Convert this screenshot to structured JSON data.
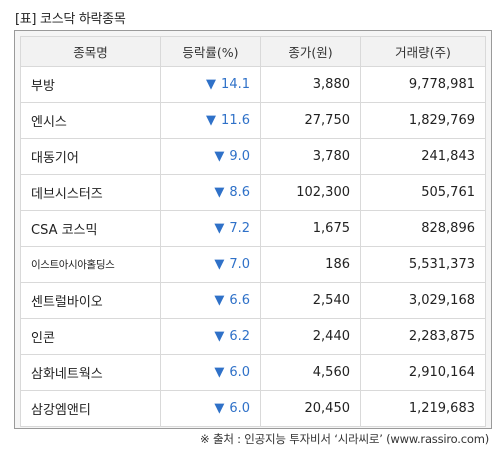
{
  "title": "[표] 코스닥 하락종목",
  "columns": [
    "종목명",
    "등락률(%)",
    "종가(원)",
    "거래량(주)"
  ],
  "rows": [
    {
      "name": "부방",
      "arrow": "▼",
      "rate": "14.1",
      "price": "3,880",
      "volume": "9,778,981"
    },
    {
      "name": "엔시스",
      "arrow": "▼",
      "rate": "11.6",
      "price": "27,750",
      "volume": "1,829,769"
    },
    {
      "name": "대동기어",
      "arrow": "▼",
      "rate": "9.0",
      "price": "3,780",
      "volume": "241,843"
    },
    {
      "name": "데브시스터즈",
      "arrow": "▼",
      "rate": "8.6",
      "price": "102,300",
      "volume": "505,761"
    },
    {
      "name": "CSA 코스믹",
      "arrow": "▼",
      "rate": "7.2",
      "price": "1,675",
      "volume": "828,896"
    },
    {
      "name": "이스트아시아홀딩스",
      "arrow": "▼",
      "rate": "7.0",
      "price": "186",
      "volume": "5,531,373"
    },
    {
      "name": "센트럴바이오",
      "arrow": "▼",
      "rate": "6.6",
      "price": "2,540",
      "volume": "3,029,168"
    },
    {
      "name": "인콘",
      "arrow": "▼",
      "rate": "6.2",
      "price": "2,440",
      "volume": "2,283,875"
    },
    {
      "name": "삼화네트웍스",
      "arrow": "▼",
      "rate": "6.0",
      "price": "4,560",
      "volume": "2,910,164"
    },
    {
      "name": "삼강엠앤티",
      "arrow": "▼",
      "rate": "6.0",
      "price": "20,450",
      "volume": "1,219,683"
    }
  ],
  "footnote": "※ 출처 : 인공지능 투자비서 ‘시라씨로’ (www.rassiro.com)",
  "colors": {
    "down": "#2f71c8",
    "header_bg": "#f2f2f2",
    "frame_border": "#9a9a9a"
  }
}
